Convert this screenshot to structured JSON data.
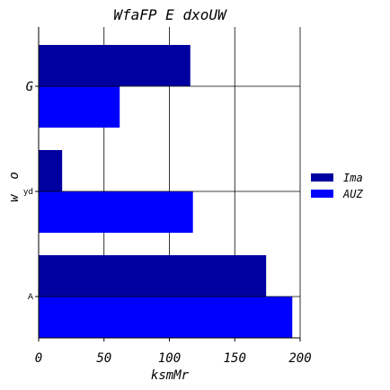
{
  "chart_data": {
    "type": "bar",
    "orientation": "horizontal",
    "title": "WfaFP E dxoUW",
    "xlabel": "ksmMr",
    "ylabel": "w  o",
    "categories": [
      "G",
      "yd",
      "A"
    ],
    "series": [
      {
        "name": "Ima",
        "color": "#0000a0",
        "values": [
          116,
          18,
          174
        ]
      },
      {
        "name": "AUZ",
        "color": "#0000ff",
        "values": [
          62,
          118,
          194
        ]
      }
    ],
    "xlim": [
      0,
      200
    ],
    "xticks": [
      0,
      50,
      100,
      150,
      200
    ],
    "grid": true,
    "legend_position": "right"
  }
}
